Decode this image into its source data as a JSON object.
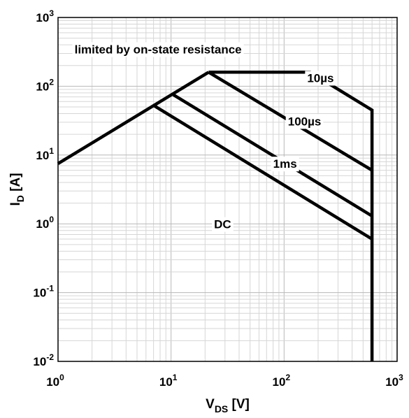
{
  "chart_data": {
    "type": "line",
    "x_scale": "log",
    "y_scale": "log",
    "xlim": [
      1,
      1000
    ],
    "ylim": [
      0.01,
      1000
    ],
    "grid": true,
    "minor_grid": true,
    "xlabel": {
      "main": "V",
      "sub": "DS",
      "unit": " [V]"
    },
    "ylabel": {
      "main": "I",
      "sub": "D",
      "unit": " [A]"
    },
    "x_ticks": [
      {
        "base": "10",
        "exp": "0"
      },
      {
        "base": "10",
        "exp": "1"
      },
      {
        "base": "10",
        "exp": "2"
      },
      {
        "base": "10",
        "exp": "3"
      }
    ],
    "y_ticks": [
      {
        "base": "10",
        "exp": "-2"
      },
      {
        "base": "10",
        "exp": "-1"
      },
      {
        "base": "10",
        "exp": "0"
      },
      {
        "base": "10",
        "exp": "1"
      },
      {
        "base": "10",
        "exp": "2"
      },
      {
        "base": "10",
        "exp": "3"
      }
    ],
    "series": [
      {
        "name": "limited by on-state resistance",
        "points": [
          [
            1,
            7.5
          ],
          [
            21.5,
            160
          ]
        ]
      },
      {
        "name": "10µs",
        "points": [
          [
            21.5,
            160
          ],
          [
            170,
            160
          ],
          [
            600,
            45
          ],
          [
            600,
            0.01
          ]
        ]
      },
      {
        "name": "100µs",
        "points": [
          [
            21.5,
            160
          ],
          [
            600,
            6
          ]
        ]
      },
      {
        "name": "1ms",
        "points": [
          [
            10.5,
            75
          ],
          [
            600,
            1.3
          ]
        ]
      },
      {
        "name": "DC",
        "points": [
          [
            7.1,
            52
          ],
          [
            600,
            0.6
          ]
        ]
      }
    ],
    "annotations": [
      {
        "text": "limited by on-state resistance",
        "x": 1.4,
        "y": 300
      },
      {
        "text": "10µs",
        "x": 160,
        "y": 115
      },
      {
        "text": "100µs",
        "x": 108,
        "y": 27
      },
      {
        "text": "1ms",
        "x": 80,
        "y": 6.5
      },
      {
        "text": "DC",
        "x": 24,
        "y": 0.86
      }
    ]
  }
}
